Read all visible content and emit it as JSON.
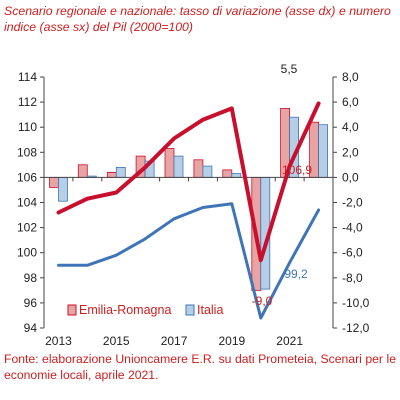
{
  "title": "Scenario regionale e nazionale: tasso di variazione (asse dx) e numero indice (asse sx) del Pil (2000=100)",
  "source": "Fonte: elaborazione Unioncamere E.R. su dati Prometeia, Scenari per le economie locali, aprile 2021.",
  "colors": {
    "emilia_line": "#c8102e",
    "emilia_bar": "#e8a3a3",
    "italia_line": "#3f75b8",
    "italia_bar": "#b6cfe6",
    "text_red": "#cc1f1f",
    "text_blue": "#3f75b8",
    "axis": "#444444",
    "grid": "#bbbbbb"
  },
  "chart_data": {
    "type": "bar+line",
    "x": [
      2013,
      2014,
      2015,
      2016,
      2017,
      2018,
      2019,
      2020,
      2021,
      2022
    ],
    "x_tick_labels": [
      "2013",
      "2015",
      "2017",
      "2019",
      "2021"
    ],
    "left_axis": {
      "range": [
        94,
        114
      ],
      "step": 2,
      "ticks": [
        "94",
        "96",
        "98",
        "100",
        "102",
        "104",
        "106",
        "108",
        "110",
        "112",
        "114"
      ]
    },
    "right_axis": {
      "range": [
        -12.0,
        8.0
      ],
      "step": 2,
      "ticks": [
        "-12,0",
        "-10,0",
        "-8,0",
        "-6,0",
        "-4,0",
        "-2,0",
        "0,0",
        "2,0",
        "4,0",
        "6,0",
        "8,0"
      ]
    },
    "series": [
      {
        "name": "Emilia-Romagna",
        "kind": "bar",
        "axis": "right",
        "values": [
          -0.8,
          1.0,
          0.4,
          1.7,
          2.3,
          1.4,
          0.6,
          -9.0,
          5.5,
          4.4
        ]
      },
      {
        "name": "Italia",
        "kind": "bar",
        "axis": "right",
        "values": [
          -1.9,
          0.1,
          0.8,
          1.3,
          1.7,
          0.9,
          0.3,
          -8.9,
          4.8,
          4.2
        ]
      },
      {
        "kind": "line",
        "axis": "left",
        "values": [
          103.2,
          104.3,
          104.8,
          106.8,
          109.1,
          110.6,
          111.5,
          99.4,
          106.9,
          111.9
        ]
      },
      {
        "kind": "line",
        "axis": "left",
        "values": [
          99.0,
          99.0,
          99.8,
          101.1,
          102.7,
          103.6,
          103.9,
          94.8,
          99.2,
          103.4
        ]
      }
    ],
    "annotations": [
      "5,5",
      "106,9",
      "-9,0",
      "99,2"
    ],
    "legend": {
      "position": "bottom-left",
      "entries": [
        "Emilia-Romagna",
        "Italia"
      ]
    },
    "grid": false
  }
}
